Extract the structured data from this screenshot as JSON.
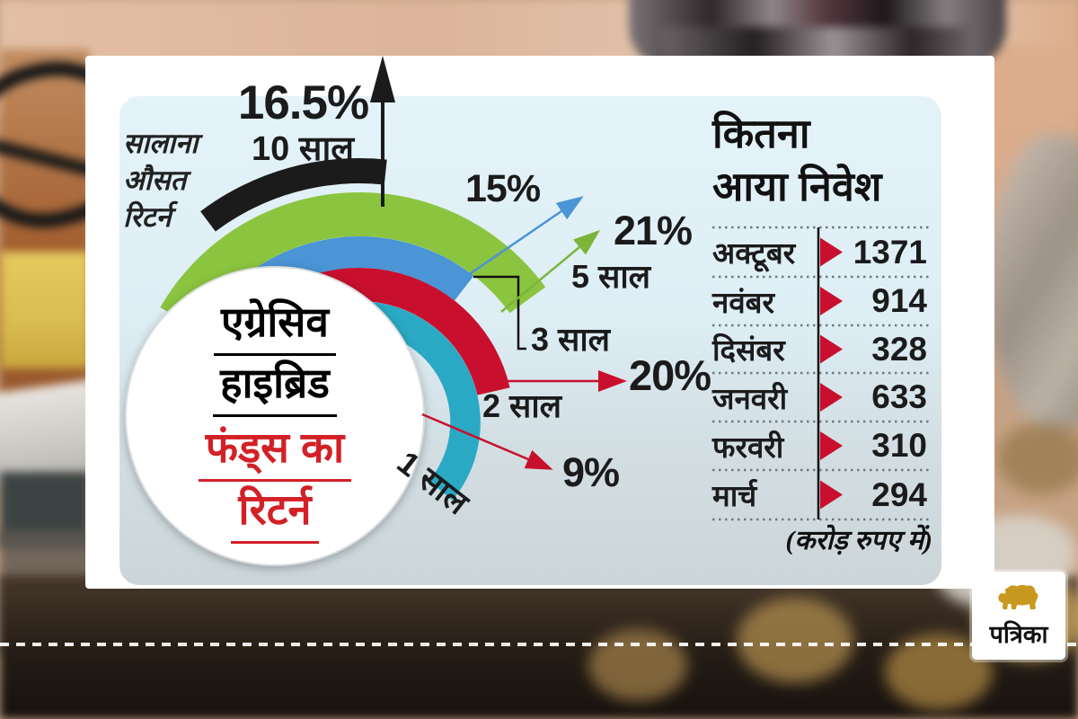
{
  "panel": {
    "side_label": "सालाना औसत रिटर्न",
    "rings": [
      {
        "id": "10y",
        "label": "10 साल",
        "value": "16.5%",
        "color": "#1b1b1b"
      },
      {
        "id": "5y",
        "label": "5 साल",
        "value": "21%",
        "color": "#8bc53f"
      },
      {
        "id": "3y",
        "label": "3 साल",
        "value": "15%",
        "color": "#4b94d5"
      },
      {
        "id": "2y",
        "label": "2 साल",
        "value": "20%",
        "color": "#c8102e"
      },
      {
        "id": "1y",
        "label": "1 साल",
        "value": "9%",
        "color": "#2aa9c4"
      }
    ],
    "circle_title": {
      "line1": "एग्रेसिव",
      "line2": "हाइब्रिड",
      "line3": "फंड्स का",
      "line4": "रिटर्न"
    },
    "table": {
      "title_line1": "कितना",
      "title_line2": "आया निवेश",
      "rows": [
        {
          "month": "अक्टूबर",
          "value": "1371"
        },
        {
          "month": "नवंबर",
          "value": "914"
        },
        {
          "month": "दिसंबर",
          "value": "328"
        },
        {
          "month": "जनवरी",
          "value": "633"
        },
        {
          "month": "फरवरी",
          "value": "310"
        },
        {
          "month": "मार्च",
          "value": "294"
        }
      ],
      "footnote": "(करोड़ रुपए में)"
    }
  },
  "logo": {
    "text": "पत्रिका"
  },
  "colors": {
    "black": "#1b1b1b",
    "green": "#8bc53f",
    "green_line": "#7cb53a",
    "blue": "#4b94d5",
    "red": "#c8102e",
    "teal": "#2aa9c4",
    "separator": "#6e7a80",
    "gold": "#c9991f"
  },
  "chart_data": [
    {
      "type": "bar",
      "title": "एग्रेसिव हाइब्रिड फंड्स का रिटर्न — सालाना औसत रिटर्न",
      "categories": [
        "10 साल",
        "5 साल",
        "3 साल",
        "2 साल",
        "1 साल"
      ],
      "values": [
        16.5,
        21,
        15,
        20,
        9
      ],
      "unit": "%",
      "note": "arc/fan infographic; each period drawn as a colored ring with arrow and % label"
    },
    {
      "type": "table",
      "title": "कितना आया निवेश",
      "categories": [
        "अक्टूबर",
        "नवंबर",
        "दिसंबर",
        "जनवरी",
        "फरवरी",
        "मार्च"
      ],
      "values": [
        1371,
        914,
        328,
        633,
        310,
        294
      ],
      "note": "(करोड़ रुपए में)"
    }
  ]
}
